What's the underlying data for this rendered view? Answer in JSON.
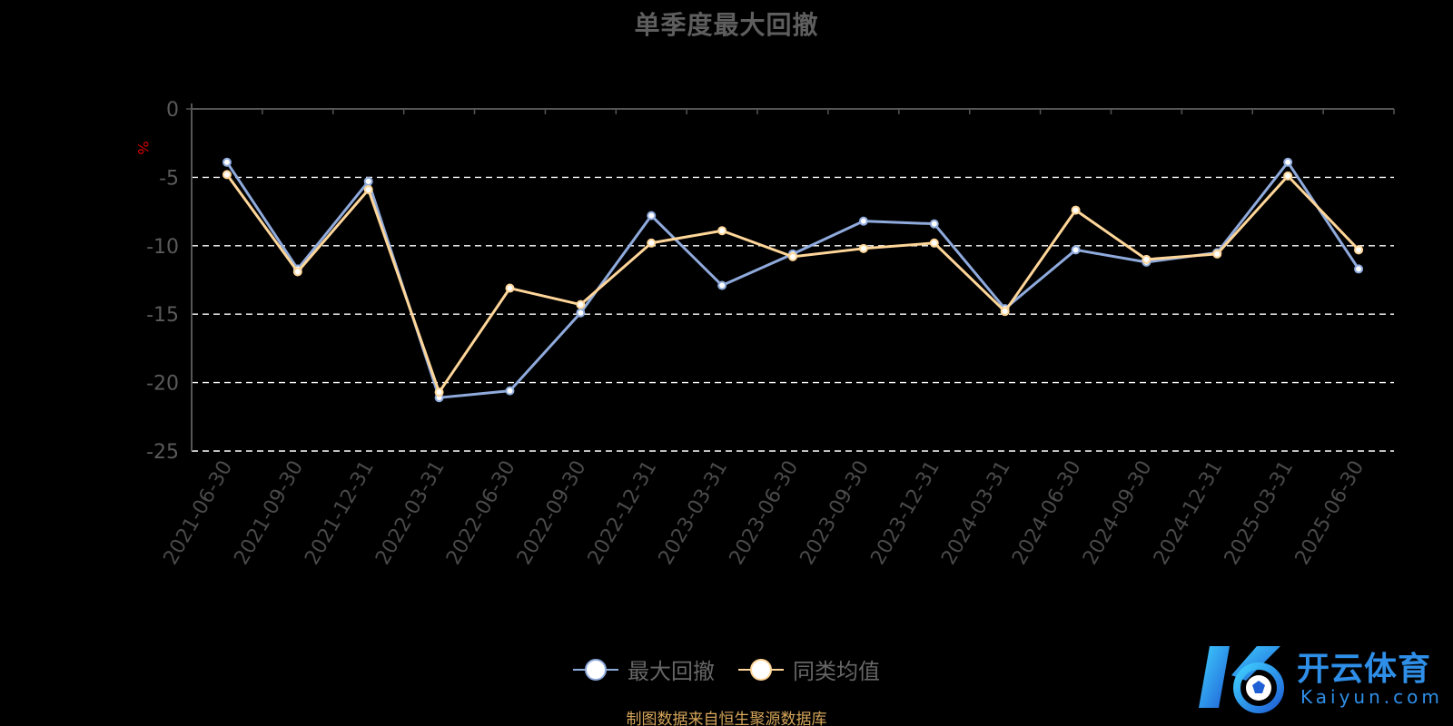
{
  "title": "单季度最大回撤",
  "source_note": "制图数据来自恒生聚源数据库",
  "watermark": {
    "brand": "开云体育",
    "domain": "Kaiyun.com"
  },
  "colors": {
    "series_1": "#8faadc",
    "series_2": "#ffd699",
    "grid": "#ffffff",
    "axis": "#555555",
    "unit": "#d40000"
  },
  "chart_data": {
    "type": "line",
    "title": "单季度最大回撤",
    "ylabel": "%",
    "ylim": [
      -25,
      0
    ],
    "yticks": [
      0,
      -5,
      -10,
      -15,
      -20,
      -25
    ],
    "grid": true,
    "legend_position": "bottom-center",
    "categories": [
      "2021-06-30",
      "2021-09-30",
      "2021-12-31",
      "2022-03-31",
      "2022-06-30",
      "2022-09-30",
      "2022-12-31",
      "2023-03-31",
      "2023-06-30",
      "2023-09-30",
      "2023-12-31",
      "2024-03-31",
      "2024-06-30",
      "2024-09-30",
      "2024-12-31",
      "2025-03-31",
      "2025-06-30"
    ],
    "series": [
      {
        "name": "最大回撤",
        "values": [
          -3.9,
          -11.7,
          -5.3,
          -21.1,
          -20.6,
          -14.9,
          -7.8,
          -12.9,
          -10.6,
          -8.2,
          -8.4,
          -14.6,
          -10.3,
          -11.2,
          -10.5,
          -3.9,
          -11.7
        ]
      },
      {
        "name": "同类均值",
        "values": [
          -4.8,
          -11.9,
          -5.9,
          -20.7,
          -13.1,
          -14.3,
          -9.8,
          -8.9,
          -10.8,
          -10.2,
          -9.8,
          -14.8,
          -7.4,
          -11.0,
          -10.6,
          -4.9,
          -10.3
        ]
      }
    ]
  }
}
